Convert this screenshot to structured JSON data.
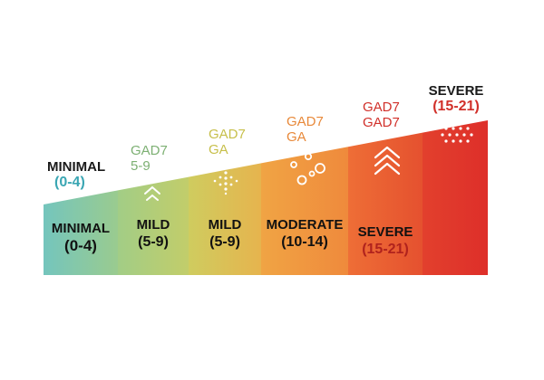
{
  "colors": {
    "minimal": "#7fc8b6",
    "mild_a": "#a8cf86",
    "mild_b": "#c9cd62",
    "moderate": "#f2a142",
    "severe_a": "#ec6d35",
    "severe_b": "#e03a2e",
    "teal_text": "#3aa6b3",
    "green_text": "#7db073",
    "yellow_text": "#c7bf4a",
    "orange_text": "#e8893a",
    "red_text": "#d1302a",
    "dark_text": "#1a1a1a"
  },
  "top_labels": {
    "minimal": {
      "title": "MINIMAL",
      "range": "(0-4)"
    },
    "mild": {
      "line1": "GAD7",
      "line2": "5-9"
    },
    "mild2": {
      "line1": "GAD7",
      "line2": "GA"
    },
    "moderate": {
      "line1": "GAD7",
      "line2": "GA"
    },
    "severe_a": {
      "line1": "GAD7",
      "line2": "GAD7"
    },
    "severe_b": {
      "title": "SEVERE",
      "range": "(15-21)"
    }
  },
  "bands": [
    {
      "name": "MINIMAL",
      "range": "(0-4)"
    },
    {
      "name": "MILD",
      "range": "(5-9)"
    },
    {
      "name": "MILD",
      "range": "(5-9)"
    },
    {
      "name": "MODERATE",
      "range": "(10-14)"
    },
    {
      "name": "SEVERE",
      "range": "(15-21)"
    }
  ],
  "icons": [
    "chevrons-up-icon",
    "dots-burst-icon",
    "bubbles-icon",
    "triple-chevron-up-icon",
    "dot-cluster-icon"
  ]
}
